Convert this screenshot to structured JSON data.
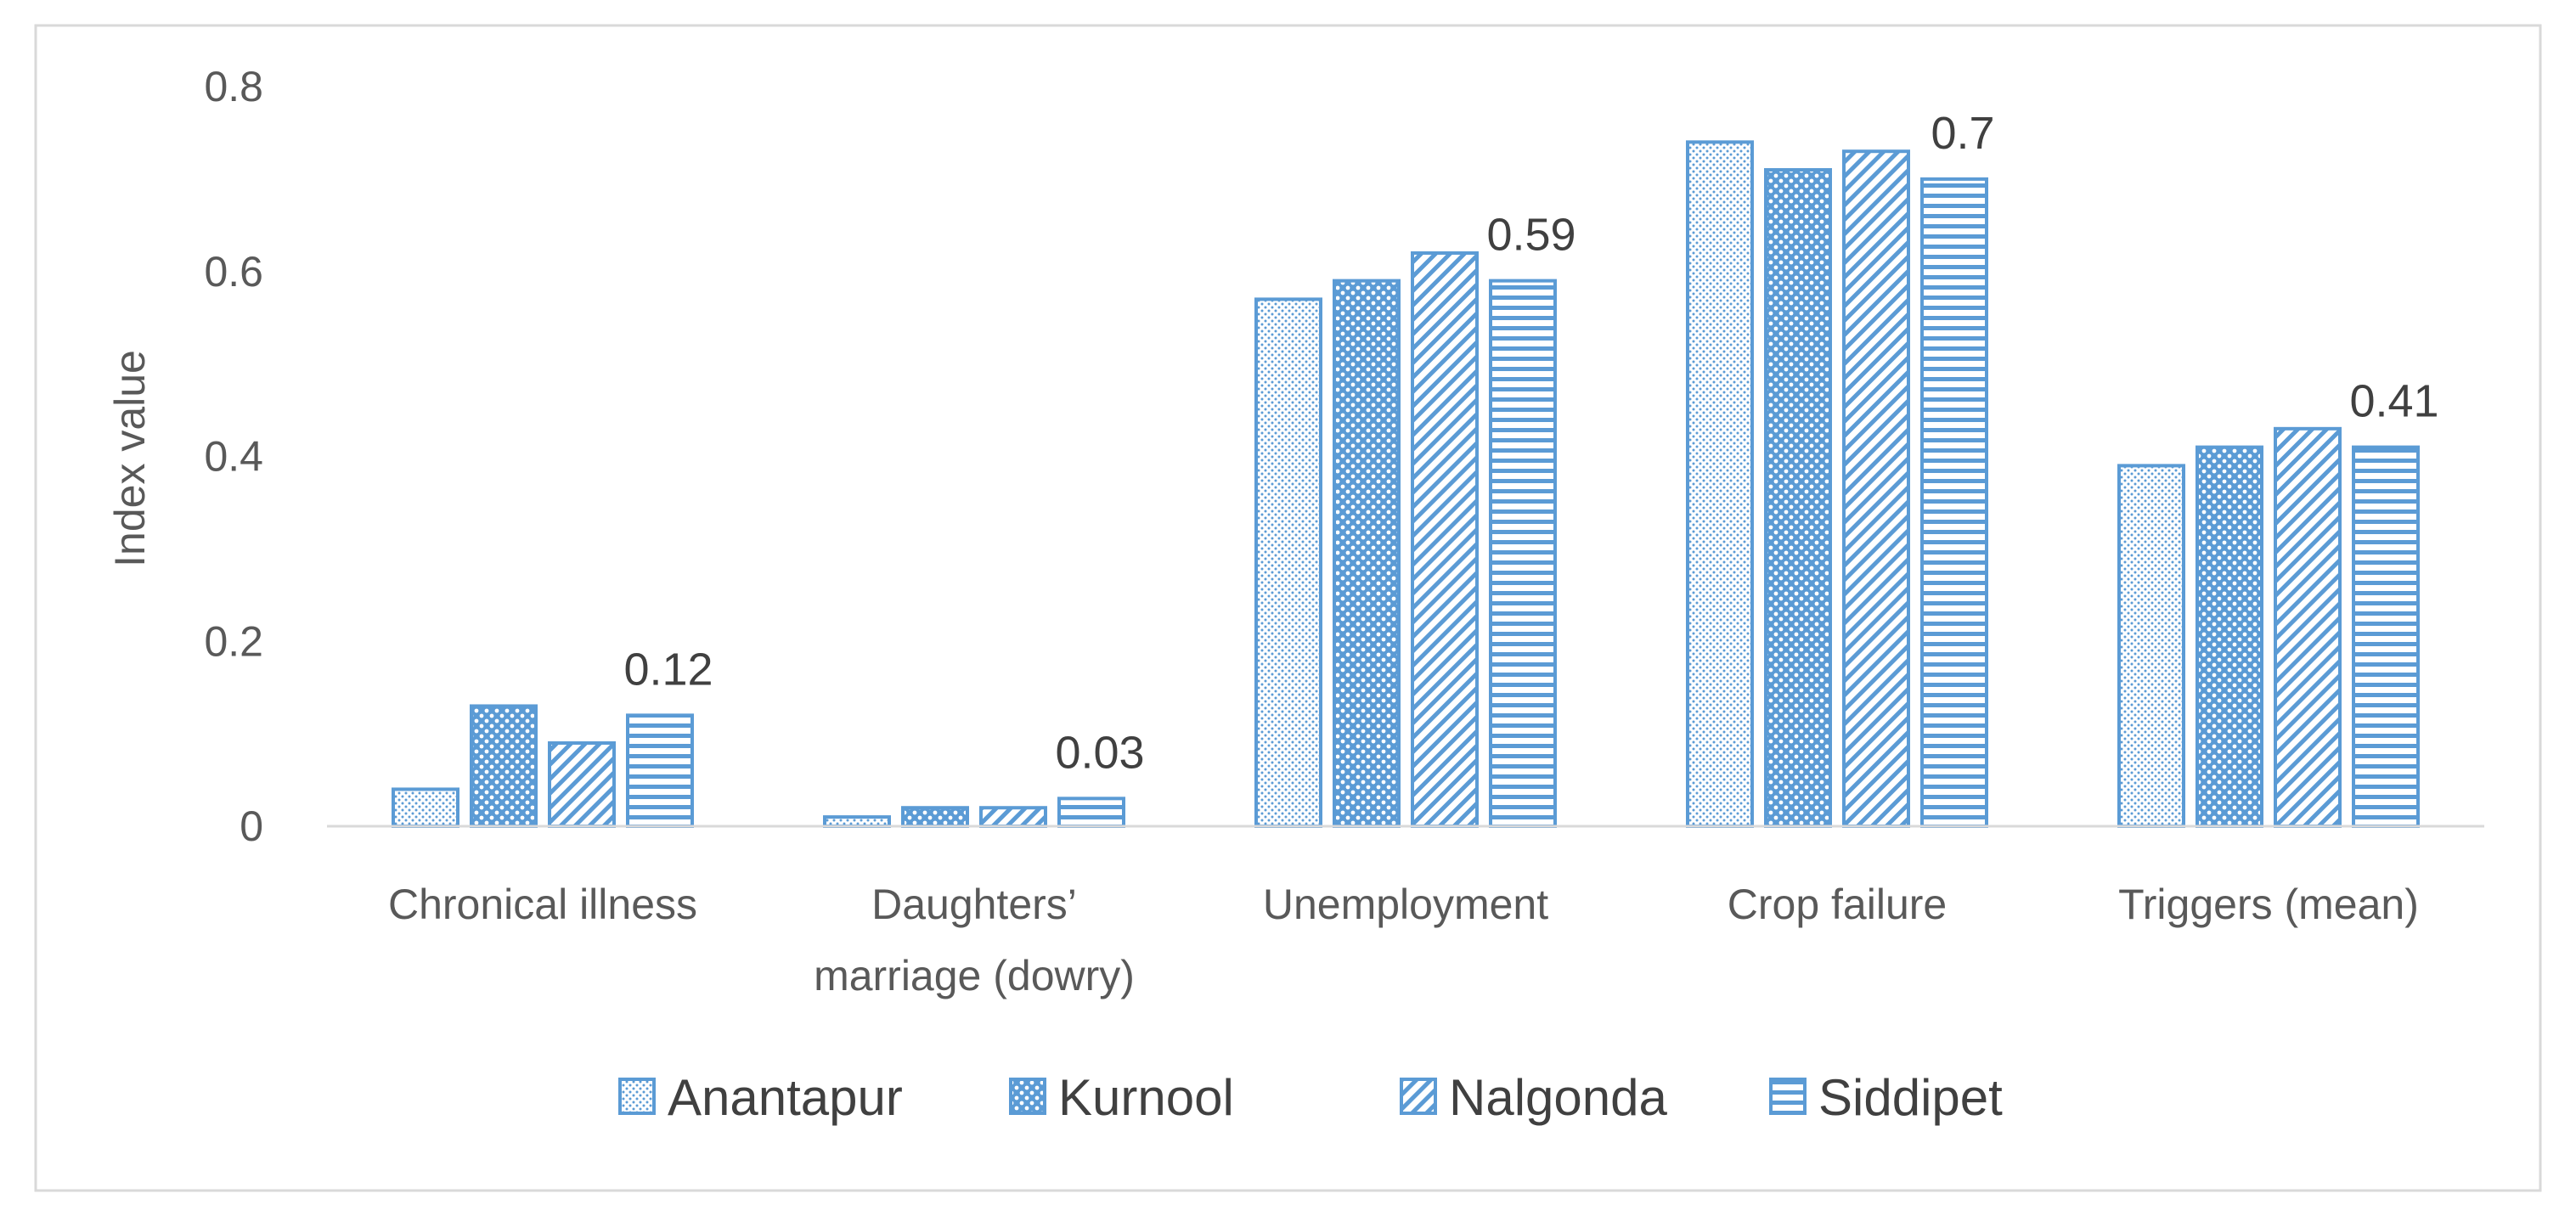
{
  "chart_data": {
    "type": "bar",
    "title": "",
    "xlabel": "",
    "ylabel": "Index value",
    "ylim": [
      0,
      0.8
    ],
    "yticks": [
      0,
      0.2,
      0.4,
      0.6,
      0.8
    ],
    "ytick_labels": [
      "0",
      "0.2",
      "0.4",
      "0.6",
      "0.8"
    ],
    "grid": false,
    "legend_position": "bottom",
    "categories": [
      [
        "Chronical illness"
      ],
      [
        "Daughters’",
        "marriage (dowry)"
      ],
      [
        "Unemployment"
      ],
      [
        "Crop failure"
      ],
      [
        "Triggers (mean)"
      ]
    ],
    "series": [
      {
        "name": "Anantapur",
        "pattern": "dots",
        "values": [
          0.04,
          0.01,
          0.57,
          0.74,
          0.39
        ]
      },
      {
        "name": "Kurnool",
        "pattern": "grid",
        "values": [
          0.13,
          0.02,
          0.59,
          0.71,
          0.41
        ]
      },
      {
        "name": "Nalgonda",
        "pattern": "diagonal",
        "values": [
          0.09,
          0.02,
          0.62,
          0.73,
          0.43
        ]
      },
      {
        "name": "Siddipet",
        "pattern": "horizontal",
        "values": [
          0.12,
          0.03,
          0.59,
          0.7,
          0.41
        ]
      }
    ],
    "data_labels": {
      "series": "Siddipet",
      "labels": [
        "0.12",
        "0.03",
        "0.59",
        "0.7",
        "0.41"
      ]
    },
    "colors": {
      "bar_stroke": "#5b9bd5",
      "bar_pattern": "#5b9bd5",
      "bar_fill": "#ffffff",
      "axis": "#d9d9d9",
      "frame": "#d9d9d9",
      "text": "#595959"
    }
  }
}
